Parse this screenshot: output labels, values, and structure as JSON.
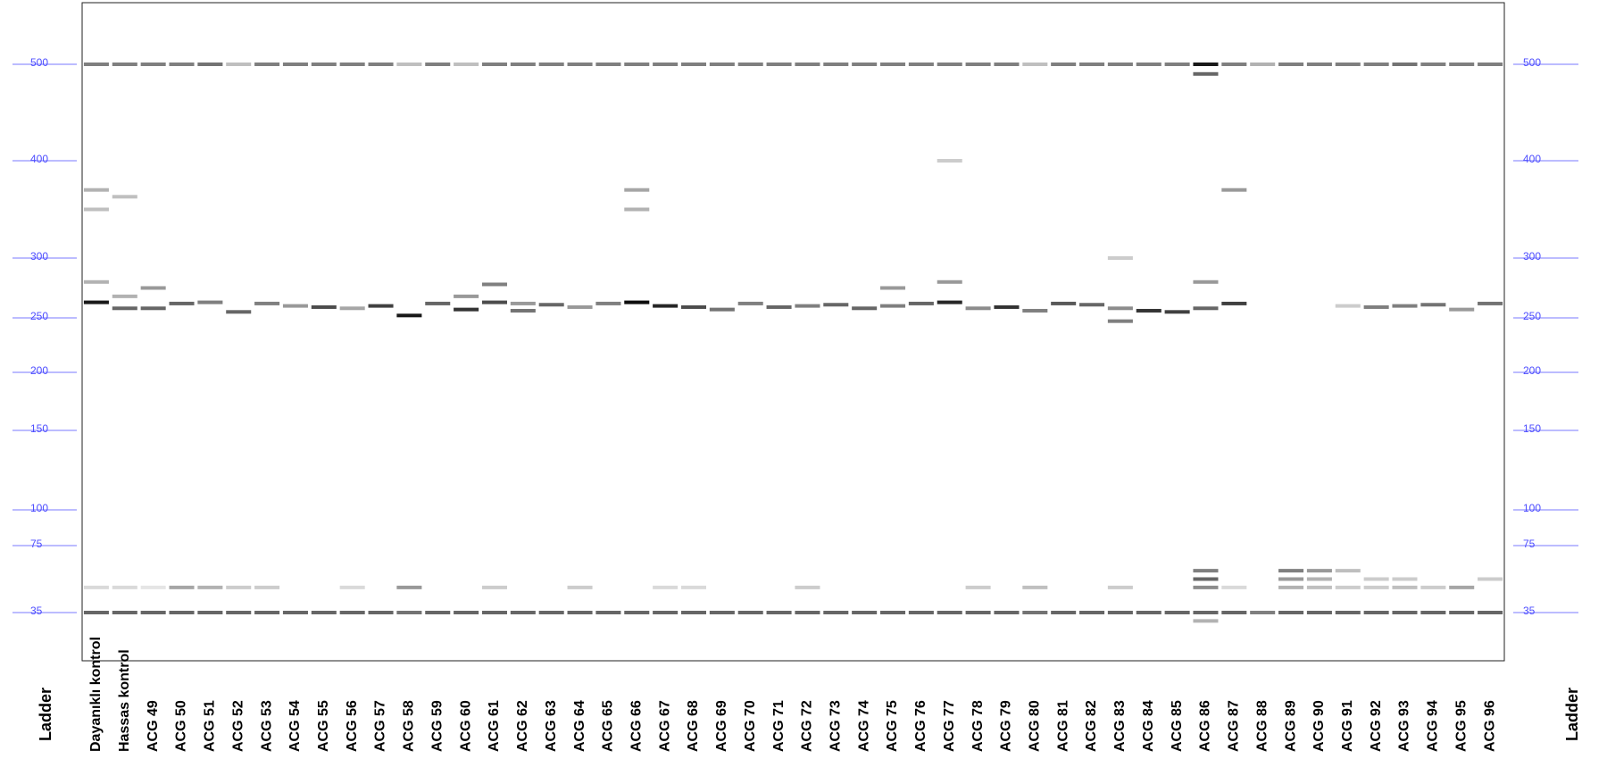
{
  "chart_data": {
    "type": "gel",
    "ladder_label": "Ladder",
    "yticks": [
      35,
      75,
      100,
      150,
      200,
      250,
      300,
      400,
      500
    ],
    "tick_color": "#4d4dff",
    "band_color": "#000000",
    "lanes": [
      {
        "name": "Dayanıklı kontrol",
        "values": [
          500,
          370,
          350,
          280,
          263,
          50,
          35
        ],
        "intensity": [
          0.5,
          0.3,
          0.25,
          0.3,
          0.9,
          0.15,
          0.6
        ]
      },
      {
        "name": "Hassas kontrol",
        "values": [
          500,
          363,
          268,
          258,
          50,
          35
        ],
        "intensity": [
          0.5,
          0.25,
          0.3,
          0.6,
          0.15,
          0.6
        ]
      },
      {
        "name": "ACG 49",
        "values": [
          500,
          275,
          258,
          50,
          35
        ],
        "intensity": [
          0.5,
          0.4,
          0.6,
          0.1,
          0.6
        ]
      },
      {
        "name": "ACG 50",
        "values": [
          500,
          262,
          50,
          35
        ],
        "intensity": [
          0.5,
          0.6,
          0.35,
          0.6
        ]
      },
      {
        "name": "ACG 51",
        "values": [
          500,
          263,
          50,
          35
        ],
        "intensity": [
          0.55,
          0.5,
          0.3,
          0.6
        ]
      },
      {
        "name": "ACG 52",
        "values": [
          500,
          255,
          50,
          35
        ],
        "intensity": [
          0.25,
          0.6,
          0.2,
          0.6
        ]
      },
      {
        "name": "ACG 53",
        "values": [
          500,
          262,
          50,
          35
        ],
        "intensity": [
          0.5,
          0.5,
          0.2,
          0.6
        ]
      },
      {
        "name": "ACG 54",
        "values": [
          500,
          260,
          35
        ],
        "intensity": [
          0.5,
          0.4,
          0.6
        ]
      },
      {
        "name": "ACG 55",
        "values": [
          500,
          259,
          35
        ],
        "intensity": [
          0.5,
          0.7,
          0.6
        ]
      },
      {
        "name": "ACG 56",
        "values": [
          500,
          258,
          50,
          35
        ],
        "intensity": [
          0.5,
          0.35,
          0.15,
          0.6
        ]
      },
      {
        "name": "ACG 57",
        "values": [
          500,
          260,
          35
        ],
        "intensity": [
          0.5,
          0.75,
          0.6
        ]
      },
      {
        "name": "ACG 58",
        "values": [
          500,
          252,
          50,
          35
        ],
        "intensity": [
          0.25,
          0.9,
          0.4,
          0.55
        ]
      },
      {
        "name": "ACG 59",
        "values": [
          500,
          262,
          35
        ],
        "intensity": [
          0.5,
          0.6,
          0.6
        ]
      },
      {
        "name": "ACG 60",
        "values": [
          500,
          268,
          257,
          35
        ],
        "intensity": [
          0.25,
          0.4,
          0.8,
          0.6
        ]
      },
      {
        "name": "ACG 61",
        "values": [
          500,
          278,
          263,
          50,
          35
        ],
        "intensity": [
          0.5,
          0.5,
          0.7,
          0.2,
          0.6
        ]
      },
      {
        "name": "ACG 62",
        "values": [
          500,
          262,
          256,
          35
        ],
        "intensity": [
          0.5,
          0.4,
          0.55,
          0.6
        ]
      },
      {
        "name": "ACG 63",
        "values": [
          500,
          261,
          35
        ],
        "intensity": [
          0.5,
          0.6,
          0.6
        ]
      },
      {
        "name": "ACG 64",
        "values": [
          500,
          259,
          50,
          35
        ],
        "intensity": [
          0.5,
          0.4,
          0.2,
          0.6
        ]
      },
      {
        "name": "ACG 65",
        "values": [
          500,
          262,
          35
        ],
        "intensity": [
          0.5,
          0.5,
          0.6
        ]
      },
      {
        "name": "ACG 66",
        "values": [
          500,
          370,
          350,
          263,
          35
        ],
        "intensity": [
          0.5,
          0.35,
          0.3,
          0.95,
          0.6
        ]
      },
      {
        "name": "ACG 67",
        "values": [
          500,
          260,
          50,
          35
        ],
        "intensity": [
          0.5,
          0.85,
          0.15,
          0.6
        ]
      },
      {
        "name": "ACG 68",
        "values": [
          500,
          259,
          50,
          35
        ],
        "intensity": [
          0.5,
          0.7,
          0.15,
          0.6
        ]
      },
      {
        "name": "ACG 69",
        "values": [
          500,
          257,
          35
        ],
        "intensity": [
          0.5,
          0.55,
          0.6
        ]
      },
      {
        "name": "ACG 70",
        "values": [
          500,
          262,
          35
        ],
        "intensity": [
          0.5,
          0.5,
          0.6
        ]
      },
      {
        "name": "ACG 71",
        "values": [
          500,
          259,
          35
        ],
        "intensity": [
          0.5,
          0.6,
          0.6
        ]
      },
      {
        "name": "ACG 72",
        "values": [
          500,
          260,
          50,
          35
        ],
        "intensity": [
          0.5,
          0.5,
          0.2,
          0.6
        ]
      },
      {
        "name": "ACG 73",
        "values": [
          500,
          261,
          35
        ],
        "intensity": [
          0.5,
          0.6,
          0.6
        ]
      },
      {
        "name": "ACG 74",
        "values": [
          500,
          258,
          35
        ],
        "intensity": [
          0.5,
          0.6,
          0.6
        ]
      },
      {
        "name": "ACG 75",
        "values": [
          500,
          275,
          260,
          35
        ],
        "intensity": [
          0.5,
          0.4,
          0.5,
          0.6
        ]
      },
      {
        "name": "ACG 76",
        "values": [
          500,
          262,
          35
        ],
        "intensity": [
          0.5,
          0.6,
          0.6
        ]
      },
      {
        "name": "ACG 77",
        "values": [
          500,
          400,
          280,
          263,
          35
        ],
        "intensity": [
          0.5,
          0.2,
          0.4,
          0.85,
          0.6
        ]
      },
      {
        "name": "ACG 78",
        "values": [
          500,
          258,
          50,
          35
        ],
        "intensity": [
          0.5,
          0.45,
          0.2,
          0.6
        ]
      },
      {
        "name": "ACG 79",
        "values": [
          500,
          259,
          35
        ],
        "intensity": [
          0.5,
          0.8,
          0.6
        ]
      },
      {
        "name": "ACG 80",
        "values": [
          500,
          256,
          50,
          35
        ],
        "intensity": [
          0.25,
          0.5,
          0.25,
          0.55
        ]
      },
      {
        "name": "ACG 81",
        "values": [
          500,
          262,
          35
        ],
        "intensity": [
          0.5,
          0.65,
          0.6
        ]
      },
      {
        "name": "ACG 82",
        "values": [
          500,
          261,
          35
        ],
        "intensity": [
          0.5,
          0.6,
          0.6
        ]
      },
      {
        "name": "ACG 83",
        "values": [
          500,
          300,
          258,
          247,
          50,
          35
        ],
        "intensity": [
          0.5,
          0.2,
          0.45,
          0.5,
          0.2,
          0.6
        ]
      },
      {
        "name": "ACG 84",
        "values": [
          500,
          256,
          35
        ],
        "intensity": [
          0.5,
          0.8,
          0.6
        ]
      },
      {
        "name": "ACG 85",
        "values": [
          500,
          255,
          35
        ],
        "intensity": [
          0.5,
          0.75,
          0.6
        ]
      },
      {
        "name": "ACG 86",
        "values": [
          500,
          490,
          280,
          258,
          60,
          55,
          50,
          35,
          30
        ],
        "intensity": [
          0.9,
          0.6,
          0.4,
          0.6,
          0.5,
          0.6,
          0.45,
          0.6,
          0.3
        ]
      },
      {
        "name": "ACG 87",
        "values": [
          500,
          370,
          262,
          50,
          35
        ],
        "intensity": [
          0.5,
          0.4,
          0.75,
          0.15,
          0.6
        ]
      },
      {
        "name": "ACG 88",
        "values": [
          500,
          35
        ],
        "intensity": [
          0.3,
          0.5
        ]
      },
      {
        "name": "ACG 89",
        "values": [
          500,
          60,
          55,
          50,
          35
        ],
        "intensity": [
          0.5,
          0.5,
          0.4,
          0.3,
          0.6
        ]
      },
      {
        "name": "ACG 90",
        "values": [
          500,
          60,
          55,
          50,
          35
        ],
        "intensity": [
          0.5,
          0.4,
          0.3,
          0.25,
          0.6
        ]
      },
      {
        "name": "ACG 91",
        "values": [
          500,
          260,
          60,
          50,
          35
        ],
        "intensity": [
          0.5,
          0.2,
          0.25,
          0.2,
          0.6
        ]
      },
      {
        "name": "ACG 92",
        "values": [
          500,
          259,
          55,
          50,
          35
        ],
        "intensity": [
          0.5,
          0.5,
          0.2,
          0.2,
          0.6
        ]
      },
      {
        "name": "ACG 93",
        "values": [
          500,
          260,
          55,
          50,
          35
        ],
        "intensity": [
          0.55,
          0.5,
          0.2,
          0.25,
          0.6
        ]
      },
      {
        "name": "ACG 94",
        "values": [
          500,
          261,
          50,
          35
        ],
        "intensity": [
          0.5,
          0.55,
          0.2,
          0.6
        ]
      },
      {
        "name": "ACG 95",
        "values": [
          500,
          257,
          50,
          35
        ],
        "intensity": [
          0.5,
          0.4,
          0.35,
          0.6
        ]
      },
      {
        "name": "ACG 96",
        "values": [
          500,
          262,
          55,
          35
        ],
        "intensity": [
          0.5,
          0.55,
          0.2,
          0.6
        ]
      }
    ]
  }
}
